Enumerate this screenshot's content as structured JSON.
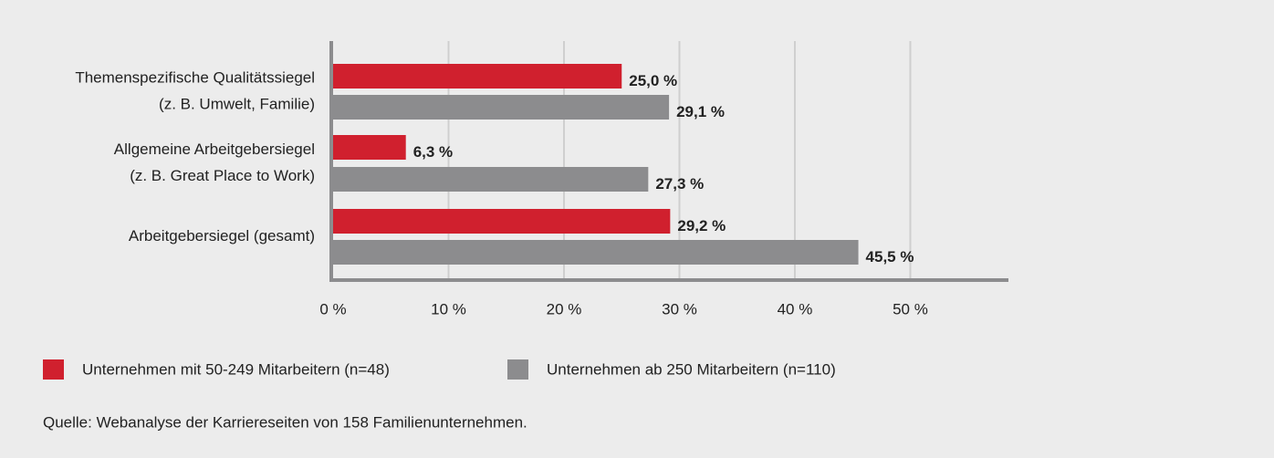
{
  "chart_data": {
    "type": "bar",
    "orientation": "horizontal",
    "categories": [
      [
        "Themenspezifische Qualitätssiegel",
        "(z. B. Umwelt, Familie)"
      ],
      [
        "Allgemeine Arbeitgebersiegel",
        "(z. B. Great Place to Work)"
      ],
      [
        "Arbeitgebersiegel (gesamt)"
      ]
    ],
    "series": [
      {
        "name": "Unternehmen mit 50-249 Mitarbeitern (n=48)",
        "color": "#d0202e",
        "values": [
          25.0,
          6.3,
          29.2
        ],
        "value_labels": [
          "25,0 %",
          "6,3 %",
          "29,2 %"
        ]
      },
      {
        "name": "Unternehmen ab 250 Mitarbeitern (n=110)",
        "color": "#8c8c8e",
        "values": [
          29.1,
          27.3,
          45.5
        ],
        "value_labels": [
          "29,1 %",
          "27,3 %",
          "45,5 %"
        ]
      }
    ],
    "xlim": [
      0,
      58.5
    ],
    "xticks": [
      {
        "value": 0,
        "label": "0 %"
      },
      {
        "value": 10,
        "label": "10 %"
      },
      {
        "value": 20,
        "label": "20 %"
      },
      {
        "value": 30,
        "label": "30 %"
      },
      {
        "value": 40,
        "label": "40 %"
      },
      {
        "value": 50,
        "label": "50 %"
      }
    ],
    "grid": true,
    "source": "Quelle: Webanalyse der Karriereseiten von 158 Familienunternehmen."
  }
}
